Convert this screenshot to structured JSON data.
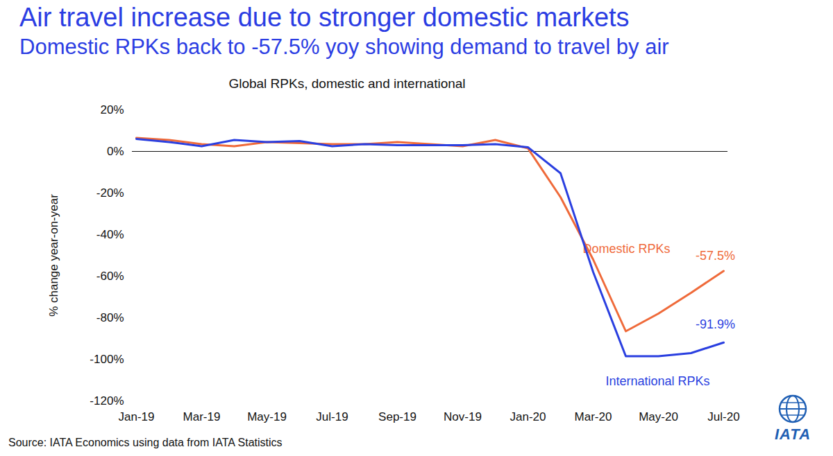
{
  "chart_data": {
    "type": "line",
    "title": "Air travel increase due to stronger domestic markets",
    "subtitle": "Domestic RPKs back to -57.5% yoy showing demand to travel by air",
    "chart_title": "Global RPKs, domestic and international",
    "y_label": "% change year-on-year",
    "source": "Source: IATA Economics using data from IATA Statistics",
    "logo": "IATA",
    "categories": [
      "Jan-19",
      null,
      "Mar-19",
      null,
      "May-19",
      null,
      "Jul-19",
      null,
      "Sep-19",
      null,
      "Nov-19",
      null,
      "Jan-20",
      null,
      "Mar-20",
      null,
      "May-20",
      null,
      "Jul-20"
    ],
    "series": [
      {
        "name": "Domestic RPKs",
        "color": "#ef6a3a",
        "values": [
          6.5,
          5.5,
          3.5,
          2.5,
          4.5,
          4,
          3.5,
          3.5,
          4.5,
          3.5,
          2.5,
          5.5,
          1.5,
          -22,
          -52,
          -86.5,
          -78,
          -68,
          -57.5
        ],
        "value_labels": [
          null,
          null,
          null,
          null,
          null,
          null,
          null,
          null,
          null,
          null,
          null,
          null,
          null,
          null,
          null,
          null,
          null,
          null,
          "-57.5%"
        ]
      },
      {
        "name": "International RPKs",
        "color": "#2a3fe0",
        "values": [
          6,
          4.5,
          2.5,
          5.5,
          4.5,
          5,
          2.5,
          3.5,
          3,
          3,
          3,
          3.5,
          2,
          -10.5,
          -58,
          -98.5,
          -98.5,
          -97,
          -91.9
        ],
        "value_labels": [
          null,
          null,
          null,
          null,
          null,
          null,
          null,
          null,
          null,
          null,
          null,
          null,
          null,
          null,
          null,
          null,
          null,
          null,
          "-91.9%"
        ]
      }
    ],
    "ylim": [
      -120,
      20
    ],
    "yticks": [
      {
        "value": -120,
        "label": "-120%"
      },
      {
        "value": -100,
        "label": "-100%"
      },
      {
        "value": -80,
        "label": "-80%"
      },
      {
        "value": -60,
        "label": "-60%"
      },
      {
        "value": -40,
        "label": "-40%"
      },
      {
        "value": -20,
        "label": "-20%"
      },
      {
        "value": 0,
        "label": "0%"
      },
      {
        "value": 20,
        "label": "20%"
      }
    ],
    "grid": false,
    "data_labels": true
  }
}
